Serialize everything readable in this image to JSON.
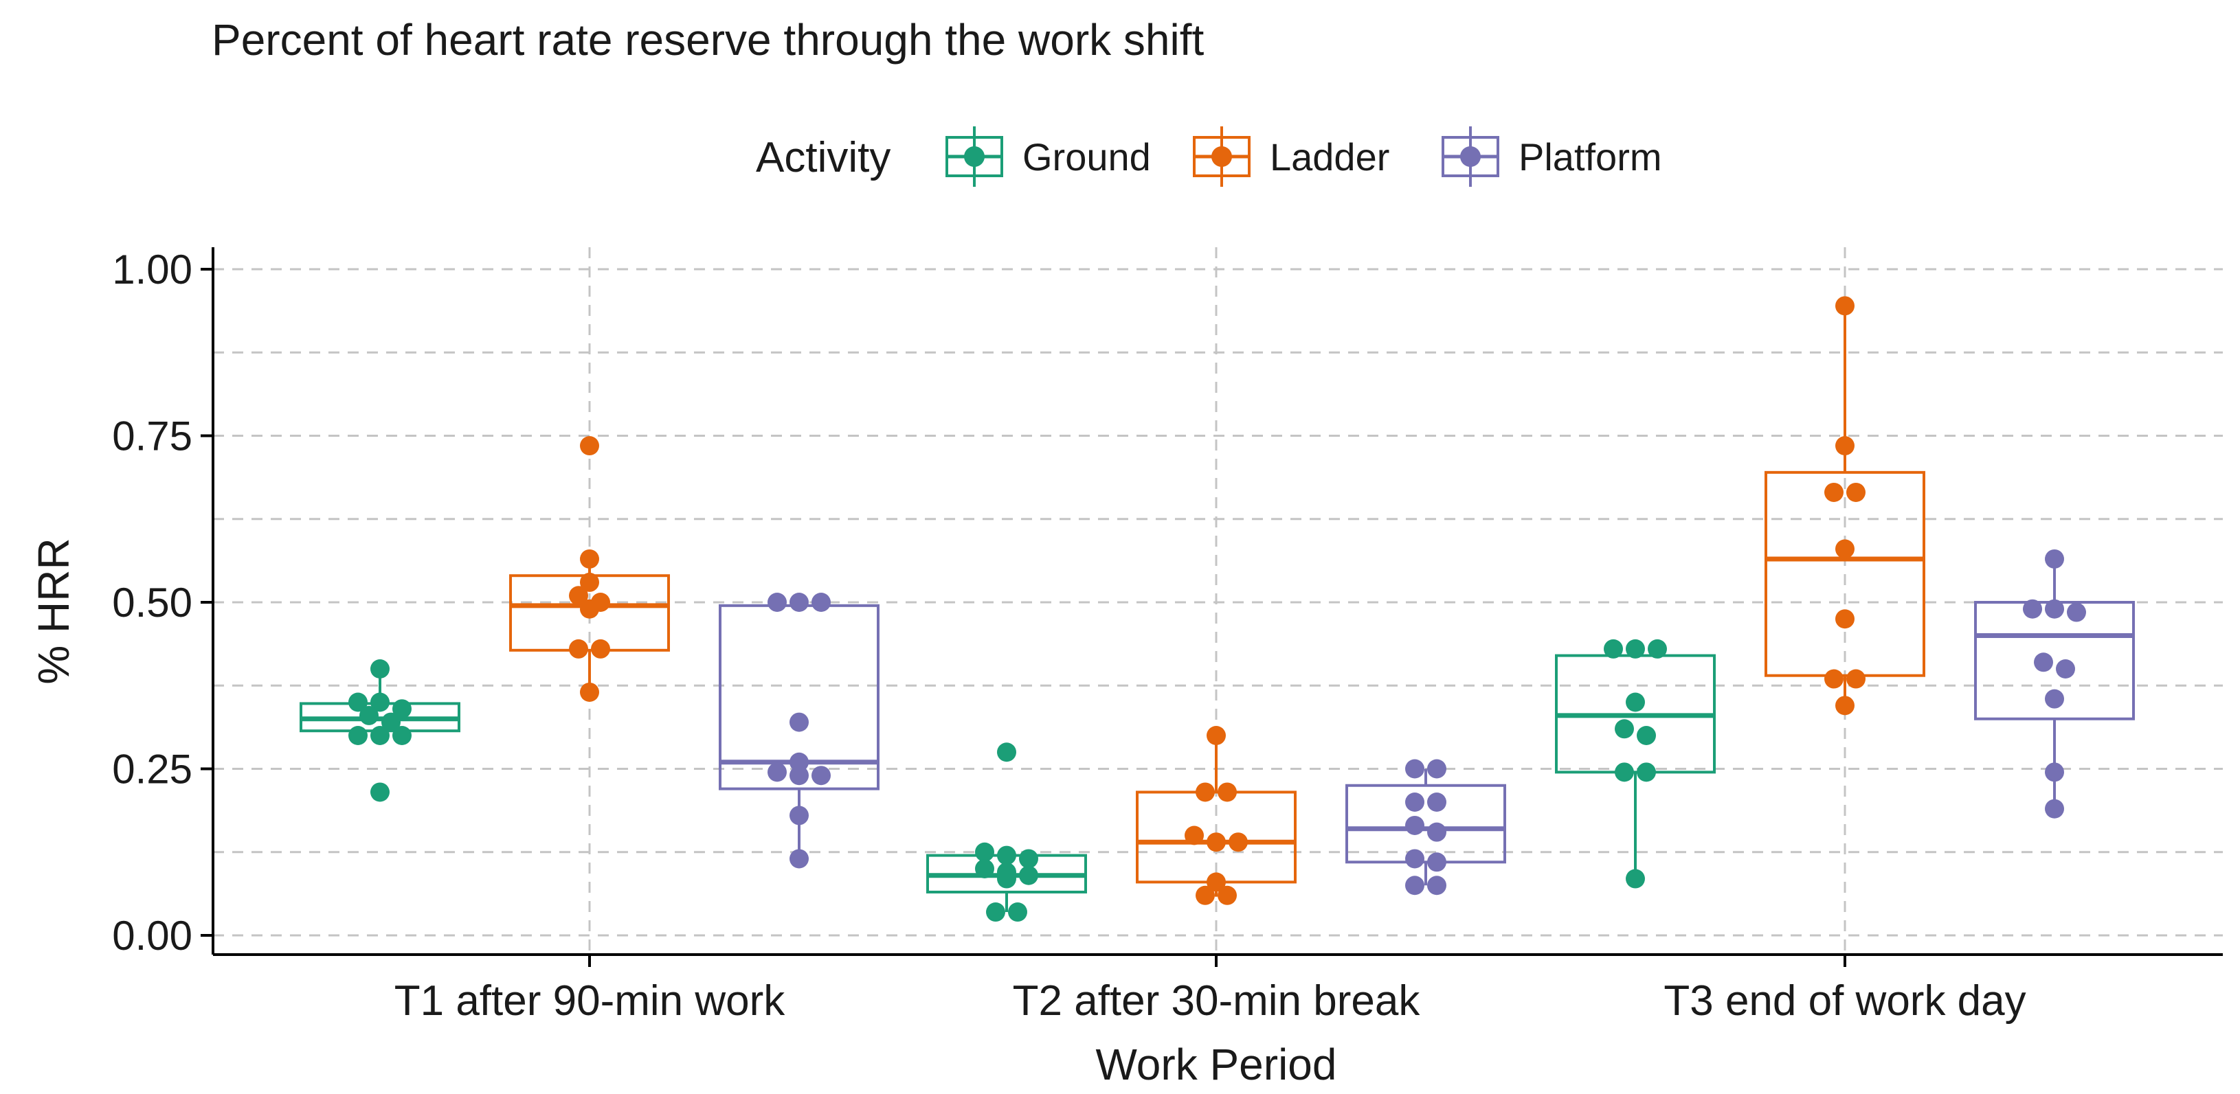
{
  "chart_data": {
    "type": "boxplot",
    "title": "Percent of heart rate reserve through the work shift",
    "xlabel": "Work Period",
    "ylabel": "% HRR",
    "ylim": [
      0.0,
      1.0
    ],
    "yticks": [
      0.0,
      0.25,
      0.5,
      0.75,
      1.0
    ],
    "ytick_labels": [
      "0.00",
      "0.25",
      "0.50",
      "0.75",
      "1.00"
    ],
    "minor_gridlines": [
      0.125,
      0.375,
      0.625,
      0.875
    ],
    "grid": true,
    "legend": {
      "position": "top",
      "title": "Activity",
      "entries": [
        "Ground",
        "Ladder",
        "Platform"
      ]
    },
    "categories": [
      "T1 after 90-min work",
      "T2 after 30-min break",
      "T3 end of work day"
    ],
    "series": [
      {
        "name": "Ground",
        "color": "#1b9e77",
        "boxes": [
          {
            "q1": 0.307,
            "median": 0.325,
            "q3": 0.348,
            "whisker_low": 0.3,
            "whisker_high": 0.4,
            "points": [
              0.4,
              0.35,
              0.35,
              0.34,
              0.33,
              0.32,
              0.3,
              0.3,
              0.3,
              0.215
            ]
          },
          {
            "q1": 0.065,
            "median": 0.09,
            "q3": 0.12,
            "whisker_low": 0.035,
            "whisker_high": 0.125,
            "points": [
              0.275,
              0.125,
              0.12,
              0.115,
              0.1,
              0.095,
              0.09,
              0.085,
              0.035,
              0.035
            ]
          },
          {
            "q1": 0.245,
            "median": 0.33,
            "q3": 0.42,
            "whisker_low": 0.085,
            "whisker_high": 0.43,
            "points": [
              0.43,
              0.43,
              0.43,
              0.35,
              0.31,
              0.3,
              0.245,
              0.245,
              0.085
            ]
          }
        ]
      },
      {
        "name": "Ladder",
        "color": "#e5660c",
        "boxes": [
          {
            "q1": 0.428,
            "median": 0.495,
            "q3": 0.54,
            "whisker_low": 0.365,
            "whisker_high": 0.565,
            "points": [
              0.735,
              0.565,
              0.53,
              0.51,
              0.5,
              0.49,
              0.43,
              0.43,
              0.365
            ]
          },
          {
            "q1": 0.08,
            "median": 0.14,
            "q3": 0.215,
            "whisker_low": 0.058,
            "whisker_high": 0.3,
            "points": [
              0.3,
              0.215,
              0.215,
              0.15,
              0.14,
              0.14,
              0.08,
              0.06,
              0.06
            ]
          },
          {
            "q1": 0.39,
            "median": 0.565,
            "q3": 0.695,
            "whisker_low": 0.345,
            "whisker_high": 0.945,
            "points": [
              0.945,
              0.735,
              0.665,
              0.665,
              0.58,
              0.475,
              0.385,
              0.385,
              0.345
            ]
          }
        ]
      },
      {
        "name": "Platform",
        "color": "#7570b3",
        "boxes": [
          {
            "q1": 0.22,
            "median": 0.26,
            "q3": 0.495,
            "whisker_low": 0.115,
            "whisker_high": 0.5,
            "points": [
              0.5,
              0.5,
              0.5,
              0.32,
              0.26,
              0.245,
              0.24,
              0.24,
              0.18,
              0.115
            ]
          },
          {
            "q1": 0.11,
            "median": 0.16,
            "q3": 0.225,
            "whisker_low": 0.075,
            "whisker_high": 0.25,
            "points": [
              0.25,
              0.25,
              0.2,
              0.2,
              0.165,
              0.155,
              0.115,
              0.11,
              0.075,
              0.075
            ]
          },
          {
            "q1": 0.325,
            "median": 0.45,
            "q3": 0.5,
            "whisker_low": 0.19,
            "whisker_high": 0.565,
            "points": [
              0.565,
              0.49,
              0.49,
              0.485,
              0.41,
              0.4,
              0.355,
              0.245,
              0.19
            ]
          }
        ]
      }
    ]
  }
}
